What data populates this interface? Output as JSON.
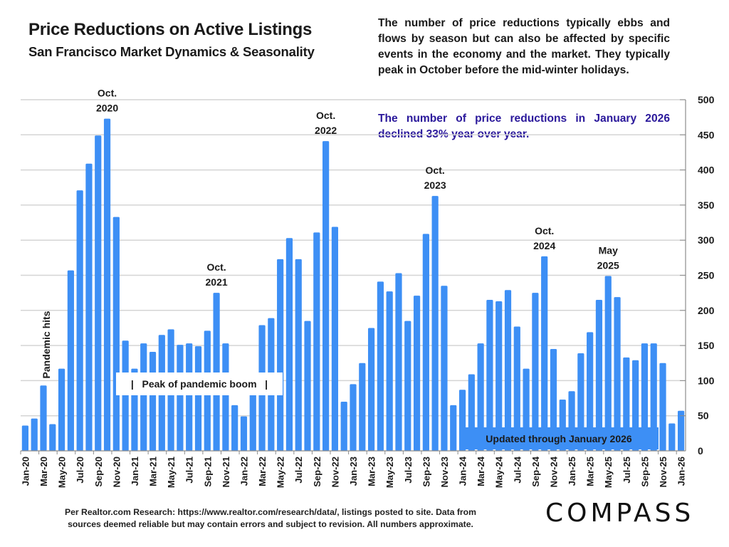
{
  "header": {
    "title": "Price Reductions on Active Listings",
    "subtitle": "San Francisco Market Dynamics & Seasonality"
  },
  "notes": {
    "description": "The number of price reductions typically ebbs and flows by season but can also be affected by specific events in the economy and the market. They typically peak in October before the mid-winter holidays.",
    "highlight": "The number of price reductions in January 2026 declined 33% year over year."
  },
  "footer": {
    "source_line1": "Per Realtor.com Research:  https://www.realtor.com/research/data/, listings posted to site. Data from",
    "source_line2": "sources deemed reliable but may contain errors and subject to revision. All numbers approximate.",
    "logo": "COMPASS"
  },
  "colors": {
    "bar": "#3d8ff5",
    "highlight_text": "#2a189b",
    "gridline": "#d4d4d4",
    "axis": "#8c8c8c"
  },
  "chart_data": {
    "type": "bar",
    "title": "Price Reductions on Active Listings",
    "subtitle": "San Francisco Market Dynamics & Seasonality",
    "xlabel": "",
    "ylabel": "",
    "ylim": [
      0,
      500
    ],
    "yticks": [
      0,
      50,
      100,
      150,
      200,
      250,
      300,
      350,
      400,
      450,
      500
    ],
    "y_axis_side": "right",
    "grid": true,
    "categories": [
      "Jan-20",
      "Feb-20",
      "Mar-20",
      "Apr-20",
      "May-20",
      "Jun-20",
      "Jul-20",
      "Aug-20",
      "Sep-20",
      "Oct-20",
      "Nov-20",
      "Dec-20",
      "Jan-21",
      "Feb-21",
      "Mar-21",
      "Apr-21",
      "May-21",
      "Jun-21",
      "Jul-21",
      "Aug-21",
      "Sep-21",
      "Oct-21",
      "Nov-21",
      "Dec-21",
      "Jan-22",
      "Feb-22",
      "Mar-22",
      "Apr-22",
      "May-22",
      "Jun-22",
      "Jul-22",
      "Aug-22",
      "Sep-22",
      "Oct-22",
      "Nov-22",
      "Dec-22",
      "Jan-23",
      "Feb-23",
      "Mar-23",
      "Apr-23",
      "May-23",
      "Jun-23",
      "Jul-23",
      "Aug-23",
      "Sep-23",
      "Oct-23",
      "Nov-23",
      "Dec-23",
      "Jan-24",
      "Feb-24",
      "Mar-24",
      "Apr-24",
      "May-24",
      "Jun-24",
      "Jul-24",
      "Aug-24",
      "Sep-24",
      "Oct-24",
      "Nov-24",
      "Dec-24",
      "Jan-25",
      "Feb-25",
      "Mar-25",
      "Apr-25",
      "May-25",
      "Jun-25",
      "Jul-25",
      "Aug-25",
      "Sep-25",
      "Oct-25",
      "Nov-25",
      "Dec-25",
      "Jan-26"
    ],
    "tick_label_every": 2,
    "values": [
      36,
      46,
      93,
      38,
      117,
      257,
      371,
      409,
      449,
      473,
      333,
      157,
      117,
      153,
      141,
      165,
      173,
      151,
      153,
      149,
      171,
      225,
      153,
      65,
      49,
      100,
      179,
      189,
      273,
      303,
      273,
      185,
      311,
      441,
      319,
      70,
      95,
      125,
      175,
      241,
      227,
      253,
      185,
      221,
      309,
      363,
      235,
      65,
      87,
      109,
      153,
      215,
      213,
      229,
      177,
      117,
      225,
      277,
      145,
      73,
      85,
      139,
      169,
      215,
      249,
      219,
      133,
      129,
      153,
      153,
      125,
      39,
      57
    ],
    "annotations": [
      {
        "category": "Oct-20",
        "lines": [
          "Oct.",
          "2020"
        ]
      },
      {
        "category": "Oct-21",
        "lines": [
          "Oct.",
          "2021"
        ]
      },
      {
        "category": "Oct-22",
        "lines": [
          "Oct.",
          "2022"
        ]
      },
      {
        "category": "Oct-23",
        "lines": [
          "Oct.",
          "2023"
        ]
      },
      {
        "category": "Oct-24",
        "lines": [
          "Oct.",
          "2024"
        ]
      },
      {
        "category": "May-25",
        "lines": [
          "May",
          "2025"
        ]
      }
    ],
    "callouts": {
      "pandemic_hits": "Pandemic hits",
      "peak_boom": "|   Peak of pandemic boom   |",
      "updated": "Updated through January 2026"
    }
  }
}
